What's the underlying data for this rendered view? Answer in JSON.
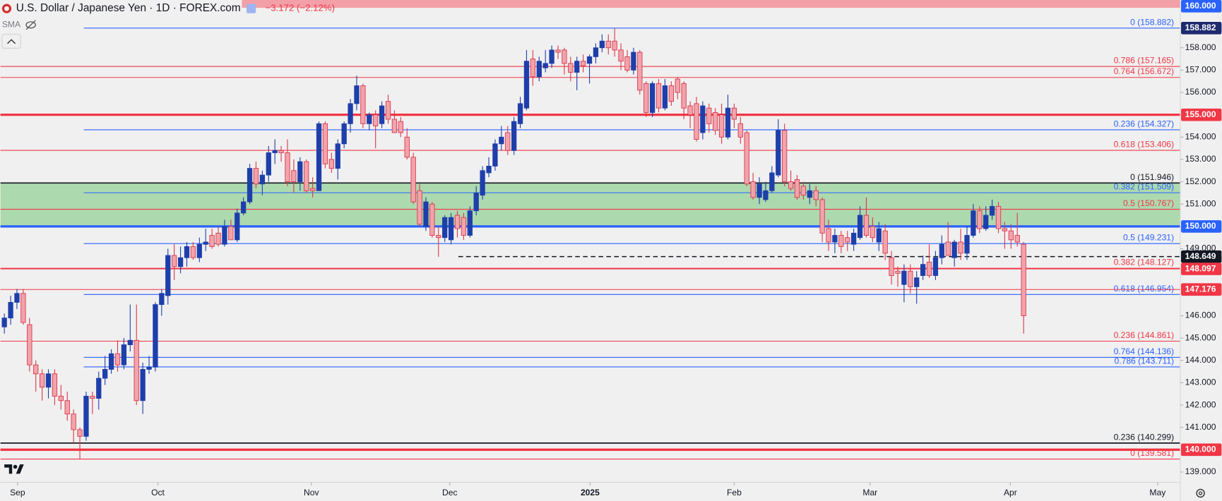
{
  "header": {
    "title": "U.S. Dollar / Japanese Yen · 1D · FOREX.com",
    "change": "−3.172 (−2.12%)",
    "indicator": "SMA"
  },
  "chart_data": {
    "type": "candlestick",
    "up_color": "#1e3faa",
    "down_color": "#f2a3ab",
    "down_border": "#d9374a",
    "ohlc": [
      [
        145.5,
        146.1,
        145.2,
        145.9
      ],
      [
        145.9,
        146.9,
        145.6,
        146.6
      ],
      [
        146.6,
        147.2,
        146.3,
        147.0
      ],
      [
        147.0,
        147.2,
        145.6,
        145.7
      ],
      [
        145.6,
        145.9,
        143.5,
        143.8
      ],
      [
        143.8,
        144.0,
        142.6,
        143.4
      ],
      [
        143.4,
        143.6,
        142.2,
        142.8
      ],
      [
        142.8,
        143.6,
        142.3,
        143.4
      ],
      [
        143.4,
        143.6,
        142.0,
        142.4
      ],
      [
        142.4,
        142.9,
        141.8,
        142.2
      ],
      [
        142.2,
        142.6,
        141.3,
        141.6
      ],
      [
        141.6,
        141.8,
        140.3,
        140.9
      ],
      [
        140.9,
        141.0,
        139.58,
        140.6
      ],
      [
        140.6,
        142.6,
        140.4,
        142.4
      ],
      [
        142.4,
        142.6,
        141.6,
        142.3
      ],
      [
        142.3,
        143.5,
        141.8,
        143.2
      ],
      [
        143.2,
        144.2,
        142.9,
        143.6
      ],
      [
        143.6,
        144.5,
        143.4,
        144.3
      ],
      [
        144.3,
        144.9,
        143.5,
        143.8
      ],
      [
        143.8,
        145.0,
        143.6,
        144.7
      ],
      [
        144.7,
        146.5,
        144.4,
        144.9
      ],
      [
        144.9,
        146.5,
        142.0,
        142.2
      ],
      [
        142.2,
        143.9,
        141.6,
        143.6
      ],
      [
        143.6,
        144.2,
        143.4,
        143.7
      ],
      [
        143.7,
        146.6,
        143.5,
        146.5
      ],
      [
        146.5,
        147.2,
        146.0,
        147.0
      ],
      [
        146.9,
        149.0,
        146.5,
        148.7
      ],
      [
        148.7,
        149.2,
        147.6,
        148.2
      ],
      [
        148.2,
        149.1,
        147.9,
        148.6
      ],
      [
        148.6,
        149.3,
        148.2,
        149.1
      ],
      [
        149.1,
        149.3,
        148.5,
        148.6
      ],
      [
        148.6,
        149.5,
        148.4,
        149.2
      ],
      [
        149.2,
        149.9,
        148.9,
        149.3
      ],
      [
        149.6,
        149.9,
        149.0,
        149.1
      ],
      [
        149.7,
        150.0,
        149.1,
        149.2
      ],
      [
        149.2,
        150.3,
        149.1,
        150.0
      ],
      [
        150.0,
        150.3,
        149.4,
        149.4
      ],
      [
        149.4,
        150.8,
        149.3,
        150.6
      ],
      [
        150.6,
        151.3,
        150.5,
        151.1
      ],
      [
        151.1,
        152.8,
        151.0,
        152.6
      ],
      [
        152.6,
        152.9,
        151.7,
        151.9
      ],
      [
        151.9,
        152.5,
        151.4,
        152.3
      ],
      [
        152.3,
        153.6,
        152.0,
        153.3
      ],
      [
        153.3,
        153.9,
        152.8,
        153.4
      ],
      [
        153.4,
        153.6,
        152.9,
        153.3
      ],
      [
        153.3,
        153.9,
        151.8,
        152.0
      ],
      [
        152.5,
        153.0,
        151.5,
        152.0
      ],
      [
        152.0,
        153.1,
        151.6,
        152.9
      ],
      [
        152.9,
        153.0,
        151.5,
        151.6
      ],
      [
        151.7,
        152.2,
        151.3,
        151.6
      ],
      [
        151.6,
        154.7,
        151.6,
        154.6
      ],
      [
        154.6,
        154.7,
        152.6,
        152.8
      ],
      [
        153.0,
        153.3,
        152.4,
        152.6
      ],
      [
        152.6,
        153.9,
        152.1,
        153.7
      ],
      [
        153.7,
        154.7,
        153.5,
        154.6
      ],
      [
        154.6,
        155.7,
        154.2,
        155.5
      ],
      [
        155.5,
        156.75,
        155.2,
        156.3
      ],
      [
        156.3,
        156.4,
        154.4,
        154.6
      ],
      [
        154.6,
        155.1,
        154.3,
        155.0
      ],
      [
        155.0,
        155.2,
        153.5,
        154.5
      ],
      [
        154.6,
        155.6,
        154.4,
        155.4
      ],
      [
        155.6,
        155.9,
        154.6,
        154.8
      ],
      [
        154.8,
        155.2,
        154.2,
        154.2
      ],
      [
        154.7,
        154.9,
        154.0,
        154.2
      ],
      [
        154.0,
        154.4,
        153.0,
        153.1
      ],
      [
        153.1,
        153.3,
        151.0,
        151.1
      ],
      [
        151.6,
        151.9,
        150.0,
        150.1
      ],
      [
        150.0,
        151.3,
        149.8,
        151.1
      ],
      [
        151.0,
        151.1,
        149.5,
        149.6
      ],
      [
        149.6,
        150.0,
        148.64,
        149.5
      ],
      [
        149.5,
        150.5,
        149.3,
        150.4
      ],
      [
        149.4,
        150.6,
        149.2,
        150.4
      ],
      [
        150.5,
        150.7,
        149.5,
        149.9
      ],
      [
        150.4,
        150.6,
        149.4,
        149.6
      ],
      [
        149.6,
        150.9,
        149.5,
        150.7
      ],
      [
        150.7,
        151.8,
        150.5,
        151.5
      ],
      [
        151.4,
        152.7,
        151.2,
        152.5
      ],
      [
        152.4,
        153.1,
        152.2,
        152.7
      ],
      [
        152.7,
        153.9,
        152.5,
        153.7
      ],
      [
        153.7,
        154.5,
        153.4,
        154.0
      ],
      [
        154.2,
        154.5,
        153.2,
        153.4
      ],
      [
        153.4,
        154.9,
        153.2,
        154.7
      ],
      [
        154.6,
        155.8,
        154.4,
        155.5
      ],
      [
        155.3,
        157.9,
        155.2,
        157.4
      ],
      [
        157.5,
        157.9,
        156.3,
        156.7
      ],
      [
        156.7,
        157.6,
        156.5,
        157.4
      ],
      [
        157.1,
        157.9,
        156.9,
        157.3
      ],
      [
        157.3,
        158.1,
        157.1,
        157.9
      ],
      [
        157.9,
        158.1,
        157.5,
        157.8
      ],
      [
        157.9,
        158.0,
        156.8,
        157.3
      ],
      [
        157.3,
        157.6,
        156.5,
        156.9
      ],
      [
        156.9,
        157.6,
        156.1,
        157.4
      ],
      [
        157.4,
        157.7,
        156.9,
        157.2
      ],
      [
        157.3,
        157.7,
        156.4,
        157.6
      ],
      [
        157.6,
        158.2,
        157.3,
        158.0
      ],
      [
        158.0,
        158.6,
        157.8,
        158.3
      ],
      [
        158.3,
        158.6,
        157.7,
        158.0
      ],
      [
        158.3,
        158.882,
        157.6,
        157.9
      ],
      [
        157.9,
        158.2,
        157.0,
        157.4
      ],
      [
        157.6,
        157.9,
        156.9,
        157.0
      ],
      [
        157.0,
        158.0,
        156.8,
        157.8
      ],
      [
        157.8,
        157.9,
        155.9,
        156.1
      ],
      [
        156.4,
        156.5,
        154.9,
        155.1
      ],
      [
        155.1,
        156.5,
        154.9,
        156.4
      ],
      [
        156.4,
        156.6,
        155.1,
        155.3
      ],
      [
        155.3,
        156.6,
        155.2,
        156.3
      ],
      [
        156.3,
        156.5,
        155.4,
        155.6
      ],
      [
        156.6,
        156.7,
        155.7,
        156.0
      ],
      [
        156.4,
        156.5,
        154.8,
        155.3
      ],
      [
        155.4,
        155.6,
        154.4,
        155.0
      ],
      [
        155.5,
        155.8,
        153.8,
        153.9
      ],
      [
        154.2,
        155.6,
        153.9,
        155.4
      ],
      [
        155.3,
        155.5,
        154.2,
        154.6
      ],
      [
        155.1,
        155.3,
        154.1,
        154.3
      ],
      [
        155.0,
        155.5,
        153.7,
        154.0
      ],
      [
        154.0,
        155.9,
        153.9,
        155.3
      ],
      [
        155.3,
        155.5,
        154.4,
        154.8
      ],
      [
        154.6,
        154.9,
        153.7,
        154.0
      ],
      [
        154.2,
        154.3,
        151.8,
        151.9
      ],
      [
        152.0,
        152.4,
        151.2,
        151.3
      ],
      [
        151.3,
        152.2,
        151.0,
        151.9
      ],
      [
        151.2,
        152.0,
        151.1,
        151.6
      ],
      [
        151.6,
        152.7,
        151.5,
        152.4
      ],
      [
        152.3,
        154.8,
        152.2,
        154.3
      ],
      [
        154.3,
        154.6,
        151.8,
        152.0
      ],
      [
        152.0,
        152.5,
        151.6,
        151.7
      ],
      [
        152.1,
        152.3,
        151.2,
        151.3
      ],
      [
        151.8,
        152.0,
        151.2,
        151.4
      ],
      [
        151.3,
        151.9,
        151.0,
        151.6
      ],
      [
        151.6,
        151.8,
        150.9,
        151.2
      ],
      [
        151.2,
        151.3,
        149.3,
        149.7
      ],
      [
        149.9,
        150.3,
        148.9,
        149.3
      ],
      [
        149.3,
        149.9,
        148.8,
        149.6
      ],
      [
        149.6,
        149.8,
        148.8,
        149.1
      ],
      [
        149.5,
        149.8,
        148.9,
        149.3
      ],
      [
        149.2,
        149.9,
        148.9,
        149.7
      ],
      [
        149.5,
        150.9,
        149.4,
        150.5
      ],
      [
        150.5,
        151.3,
        149.5,
        149.6
      ],
      [
        150.0,
        150.4,
        149.3,
        149.5
      ],
      [
        149.3,
        150.2,
        148.9,
        149.9
      ],
      [
        149.8,
        150.1,
        148.5,
        148.8
      ],
      [
        148.6,
        148.9,
        147.4,
        147.8
      ],
      [
        148.0,
        148.2,
        147.3,
        147.9
      ],
      [
        147.4,
        148.3,
        146.6,
        148.0
      ],
      [
        148.0,
        148.3,
        147.0,
        147.3
      ],
      [
        147.3,
        148.0,
        146.54,
        147.7
      ],
      [
        147.8,
        148.7,
        147.6,
        148.3
      ],
      [
        148.4,
        149.2,
        147.7,
        147.8
      ],
      [
        147.8,
        148.9,
        147.6,
        148.6
      ],
      [
        148.6,
        149.6,
        148.3,
        149.2
      ],
      [
        149.3,
        150.2,
        148.7,
        148.7
      ],
      [
        148.6,
        149.4,
        148.2,
        149.3
      ],
      [
        149.3,
        149.9,
        148.5,
        148.8
      ],
      [
        148.8,
        150.0,
        148.5,
        149.6
      ],
      [
        149.6,
        151.0,
        149.5,
        150.7
      ],
      [
        150.7,
        150.9,
        149.7,
        149.9
      ],
      [
        149.9,
        150.9,
        149.8,
        150.5
      ],
      [
        150.5,
        151.2,
        150.3,
        150.9
      ],
      [
        150.9,
        151.1,
        149.7,
        149.9
      ],
      [
        149.9,
        150.2,
        149.0,
        149.8
      ],
      [
        149.8,
        150.1,
        149.0,
        149.4
      ],
      [
        149.6,
        150.6,
        149.1,
        149.3
      ],
      [
        149.2,
        149.3,
        145.2,
        146.0
      ]
    ],
    "xlim": [
      -0.62,
      186.9
    ],
    "xticks": [
      {
        "value": 2.1,
        "label": "Sep"
      },
      {
        "value": 24.4,
        "label": "Oct"
      },
      {
        "value": 48.8,
        "label": "Nov"
      },
      {
        "value": 70.8,
        "label": "Dec"
      },
      {
        "value": 93.1,
        "label": "2025"
      },
      {
        "value": 116.0,
        "label": "Feb"
      },
      {
        "value": 137.6,
        "label": "Mar"
      },
      {
        "value": 159.9,
        "label": "Apr"
      },
      {
        "value": 183.3,
        "label": "May"
      }
    ],
    "ylim": [
      138.54,
      160.14
    ],
    "yticks": [
      {
        "value": 139,
        "label": "139.000"
      },
      {
        "value": 141,
        "label": "141.000"
      },
      {
        "value": 142,
        "label": "142.000"
      },
      {
        "value": 143,
        "label": "143.000"
      },
      {
        "value": 144,
        "label": "144.000"
      },
      {
        "value": 145,
        "label": "145.000"
      },
      {
        "value": 146,
        "label": "146.000"
      },
      {
        "value": 149,
        "label": "149.000"
      },
      {
        "value": 151,
        "label": "151.000"
      },
      {
        "value": 152,
        "label": "152.000"
      },
      {
        "value": 153,
        "label": "153.000"
      },
      {
        "value": 154,
        "label": "154.000"
      },
      {
        "value": 156,
        "label": "156.000"
      },
      {
        "value": 157,
        "label": "157.000"
      },
      {
        "value": 158,
        "label": "158.000"
      }
    ],
    "zone": {
      "values": [
        150,
        151.946
      ],
      "color": "#a5d6a7"
    },
    "levels": [
      {
        "label": "0 (158.882)",
        "value": 158.882,
        "color": "#2962ff"
      },
      {
        "label": "0.236 (154.327)",
        "value": 154.327,
        "color": "#2962ff"
      },
      {
        "label": "0.382 (151.509)",
        "value": 151.509,
        "color": "#2962ff"
      },
      {
        "label": "0.5 (149.231)",
        "value": 149.231,
        "color": "#2962ff"
      },
      {
        "label": "0.618 (146.954)",
        "value": 146.954,
        "color": "#2962ff"
      },
      {
        "label": "0.764 (144.136)",
        "value": 144.136,
        "color": "#2962ff"
      },
      {
        "label": "0.786 (143.711)",
        "value": 143.711,
        "color": "#2962ff"
      },
      {
        "label": "0.786 (157.165)",
        "value": 157.165,
        "color": "#f23645"
      },
      {
        "label": "0.764 (156.672)",
        "value": 156.672,
        "color": "#f23645"
      },
      {
        "label": "0.618 (153.406)",
        "value": 153.406,
        "color": "#f23645"
      },
      {
        "label": "0.5 (150.767)",
        "value": 150.767,
        "color": "#f23645"
      },
      {
        "label": "0.382 (148.127)",
        "value": 148.127,
        "color": "#f23645"
      },
      {
        "label": "0.236 (144.861)",
        "value": 144.861,
        "color": "#f23645"
      },
      {
        "label": "0 (139.581)",
        "value": 139.581,
        "color": "#f23645"
      },
      {
        "label": "0 (151.946)",
        "value": 151.946,
        "color": "#131722"
      },
      {
        "label": "0.236 (140.299)",
        "value": 140.299,
        "color": "#131722"
      }
    ],
    "price_lines": [
      {
        "label": "160.000",
        "value": 160,
        "color": "#2962ff",
        "line": "none"
      },
      {
        "label": "158.882",
        "value": 158.882,
        "color": "#1e2a6e",
        "line": "none"
      },
      {
        "label": "155.000",
        "value": 155,
        "color": "#f23645",
        "line": "thick"
      },
      {
        "label": "150.000",
        "value": 150,
        "color": "#2962ff",
        "line": "thick"
      },
      {
        "label": "148.649",
        "value": 148.649,
        "color": "#131722",
        "line": "dashed"
      },
      {
        "label": "148.097",
        "value": 148.097,
        "color": "#f23645",
        "line": "thin"
      },
      {
        "label": "147.176",
        "value": 147.176,
        "color": "#f23645",
        "line": "thin"
      },
      {
        "label": "140.000",
        "value": 140,
        "color": "#f23645",
        "line": "thick"
      }
    ]
  }
}
